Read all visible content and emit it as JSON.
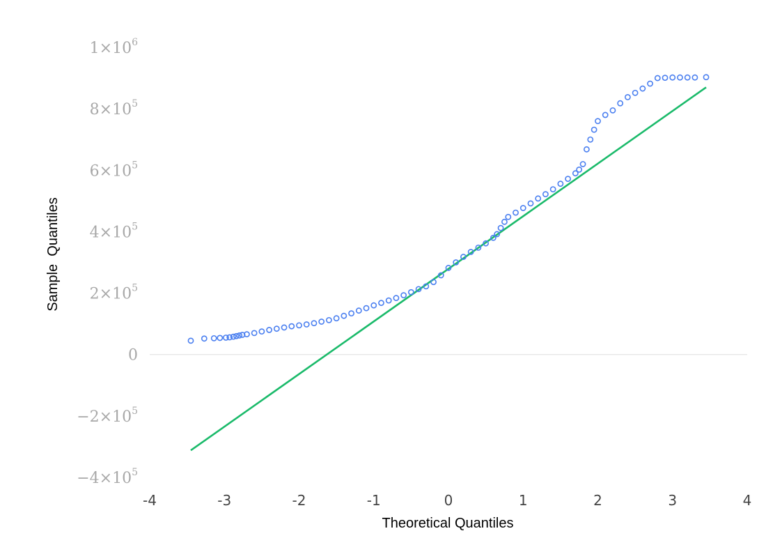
{
  "chart_data": {
    "type": "scatter",
    "title": "",
    "xlabel": "Theoretical Quantiles",
    "ylabel": "Sample  Quantiles",
    "xlim": [
      -4,
      4
    ],
    "ylim": [
      -400000,
      1000000
    ],
    "grid": false,
    "x_ticks": [
      {
        "value": -4,
        "label": "-4"
      },
      {
        "value": -3,
        "label": "-3"
      },
      {
        "value": -2,
        "label": "-2"
      },
      {
        "value": -1,
        "label": "-1"
      },
      {
        "value": 0,
        "label": "0"
      },
      {
        "value": 1,
        "label": "1"
      },
      {
        "value": 2,
        "label": "2"
      },
      {
        "value": 3,
        "label": "3"
      },
      {
        "value": 4,
        "label": "4"
      }
    ],
    "y_ticks": [
      {
        "value": 1000000,
        "label": "1×10",
        "exp": "6"
      },
      {
        "value": 800000,
        "label": "8×10",
        "exp": "5"
      },
      {
        "value": 600000,
        "label": "6×10",
        "exp": "5"
      },
      {
        "value": 400000,
        "label": "4×10",
        "exp": "5"
      },
      {
        "value": 200000,
        "label": "2×10",
        "exp": "5"
      },
      {
        "value": 0,
        "label": "0",
        "exp": ""
      },
      {
        "value": -200000,
        "label": "−2×10",
        "exp": "5"
      },
      {
        "value": -400000,
        "label": "−4×10",
        "exp": "5"
      }
    ],
    "colors": {
      "points": "#4a7ff0",
      "reference_line": "#1aba6a",
      "zero_line": "#dddddd"
    },
    "reference_line": {
      "x": [
        -3.45,
        3.45
      ],
      "y": [
        -312000,
        870000
      ]
    },
    "points": {
      "x": [
        -3.45,
        -3.27,
        -3.14,
        -3.06,
        -2.98,
        -2.93,
        -2.88,
        -2.84,
        -2.8,
        -2.76,
        -2.7,
        -2.6,
        -2.5,
        -2.4,
        -2.3,
        -2.2,
        -2.1,
        -2.0,
        -1.9,
        -1.8,
        -1.7,
        -1.6,
        -1.5,
        -1.4,
        -1.3,
        -1.2,
        -1.1,
        -1.0,
        -0.9,
        -0.8,
        -0.7,
        -0.6,
        -0.5,
        -0.4,
        -0.3,
        -0.2,
        -0.1,
        0.0,
        0.1,
        0.2,
        0.3,
        0.4,
        0.5,
        0.6,
        0.65,
        0.7,
        0.75,
        0.8,
        0.9,
        1.0,
        1.1,
        1.2,
        1.3,
        1.4,
        1.5,
        1.6,
        1.7,
        1.75,
        1.8,
        1.85,
        1.9,
        1.95,
        2.0,
        2.1,
        2.2,
        2.3,
        2.4,
        2.5,
        2.6,
        2.7,
        2.8,
        2.9,
        3.0,
        3.1,
        3.2,
        3.3,
        3.45
      ],
      "y": [
        45000,
        52000,
        53000,
        54000,
        55000,
        56000,
        58000,
        60000,
        62000,
        64000,
        66000,
        70000,
        75000,
        80000,
        84000,
        88000,
        92000,
        95000,
        98000,
        102000,
        107000,
        112000,
        118000,
        126000,
        134000,
        143000,
        151000,
        160000,
        168000,
        176000,
        184000,
        193000,
        203000,
        213000,
        222000,
        236000,
        258000,
        282000,
        300000,
        318000,
        334000,
        348000,
        362000,
        380000,
        392000,
        412000,
        432000,
        448000,
        462000,
        477000,
        492000,
        508000,
        522000,
        538000,
        556000,
        572000,
        590000,
        602000,
        620000,
        668000,
        700000,
        732000,
        760000,
        780000,
        795000,
        818000,
        838000,
        852000,
        866000,
        882000,
        900000,
        901000,
        902000,
        902000,
        902000,
        902000,
        903000
      ]
    }
  }
}
